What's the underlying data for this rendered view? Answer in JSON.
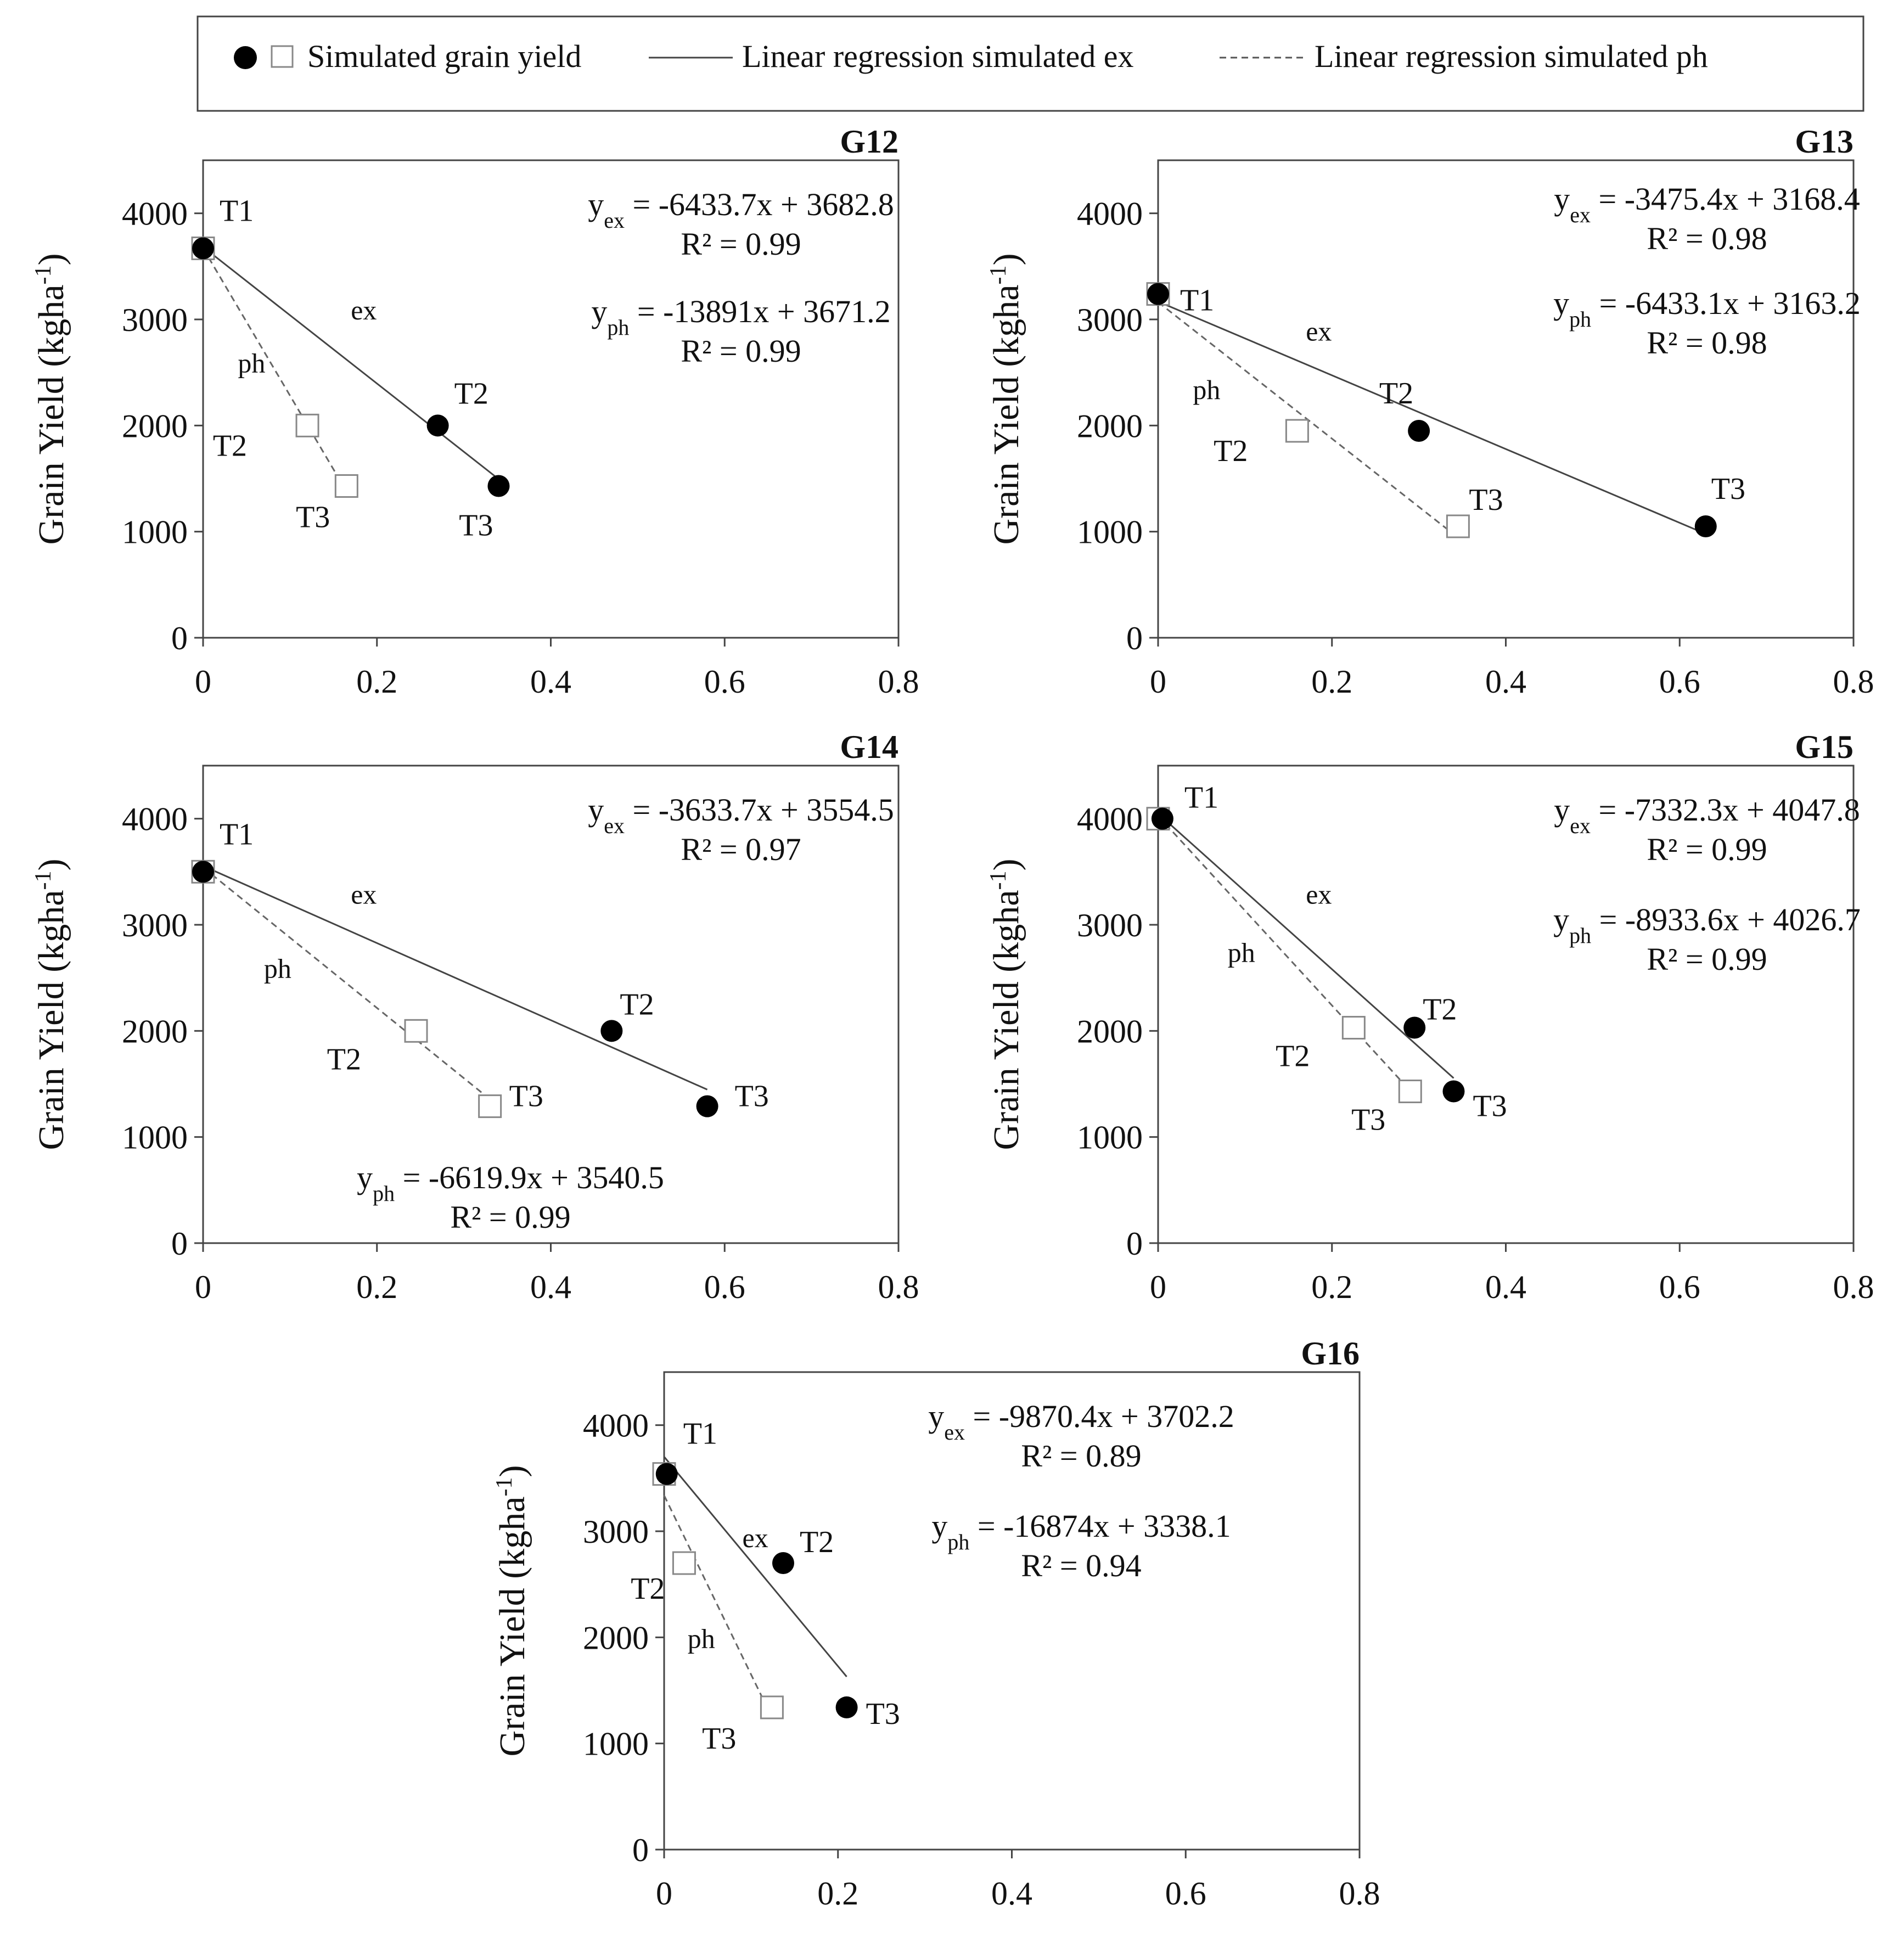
{
  "legend": {
    "marker_label": "Simulated grain yield",
    "ex_line_label": "Linear regression simulated ex",
    "ph_line_label": "Linear regression simulated ph"
  },
  "chart_data": [
    {
      "type": "scatter",
      "title": "G12",
      "ylabel": "Grain Yield (kgha-1)",
      "xlim": [
        0,
        0.8
      ],
      "ylim": [
        0,
        4000
      ],
      "xticks": [
        0,
        0.2,
        0.4,
        0.6,
        0.8
      ],
      "yticks": [
        0,
        1000,
        2000,
        3000,
        4000
      ],
      "series": [
        {
          "points": [
            {
              "x": 0.0,
              "y": 3670,
              "label": "T1"
            },
            {
              "x": 0.27,
              "y": 2000,
              "label": "T2"
            },
            {
              "x": 0.34,
              "y": 1430,
              "label": "T3"
            }
          ]
        },
        {
          "points": [
            {
              "x": 0.0,
              "y": 3670,
              "label": ""
            },
            {
              "x": 0.12,
              "y": 2000,
              "label": "T2"
            },
            {
              "x": 0.165,
              "y": 1430,
              "label": "T3"
            }
          ]
        }
      ],
      "line_labels": {
        "ex": "ex",
        "ph": "ph"
      },
      "equations": {
        "ex": {
          "base": "y",
          "sub": "ex",
          "rhs": " = -6433.7x + 3682.8",
          "r2": "R² = 0.99"
        },
        "ph": {
          "base": "y",
          "sub": "ph",
          "rhs": " = -13891x + 3671.2",
          "r2": "R² = 0.99"
        }
      }
    },
    {
      "type": "scatter",
      "title": "G13",
      "ylabel": "Grain Yield (kgha-1)",
      "xlim": [
        0,
        0.8
      ],
      "ylim": [
        0,
        4000
      ],
      "xticks": [
        0,
        0.2,
        0.4,
        0.6,
        0.8
      ],
      "yticks": [
        0,
        1000,
        2000,
        3000,
        4000
      ],
      "series": [
        {
          "points": [
            {
              "x": 0.0,
              "y": 3240,
              "label": "T1"
            },
            {
              "x": 0.3,
              "y": 1950,
              "label": "T2"
            },
            {
              "x": 0.63,
              "y": 1050,
              "label": "T3"
            }
          ]
        },
        {
          "points": [
            {
              "x": 0.0,
              "y": 3240,
              "label": ""
            },
            {
              "x": 0.16,
              "y": 1950,
              "label": "T2"
            },
            {
              "x": 0.345,
              "y": 1050,
              "label": "T3"
            }
          ]
        }
      ],
      "line_labels": {
        "ex": "ex",
        "ph": "ph"
      },
      "equations": {
        "ex": {
          "base": "y",
          "sub": "ex",
          "rhs": " = -3475.4x + 3168.4",
          "r2": "R² = 0.98"
        },
        "ph": {
          "base": "y",
          "sub": "ph",
          "rhs": " = -6433.1x + 3163.2",
          "r2": "R² = 0.98"
        }
      }
    },
    {
      "type": "scatter",
      "title": "G14",
      "ylabel": "Grain Yield (kgha-1)",
      "xlim": [
        0,
        0.8
      ],
      "ylim": [
        0,
        4000
      ],
      "xticks": [
        0,
        0.2,
        0.4,
        0.6,
        0.8
      ],
      "yticks": [
        0,
        1000,
        2000,
        3000,
        4000
      ],
      "series": [
        {
          "points": [
            {
              "x": 0.0,
              "y": 3500,
              "label": "T1"
            },
            {
              "x": 0.47,
              "y": 2000,
              "label": "T2"
            },
            {
              "x": 0.58,
              "y": 1290,
              "label": "T3"
            }
          ]
        },
        {
          "points": [
            {
              "x": 0.0,
              "y": 3500,
              "label": ""
            },
            {
              "x": 0.245,
              "y": 2000,
              "label": "T2"
            },
            {
              "x": 0.33,
              "y": 1290,
              "label": "T3"
            }
          ]
        }
      ],
      "line_labels": {
        "ex": "ex",
        "ph": "ph"
      },
      "equations": {
        "ex": {
          "base": "y",
          "sub": "ex",
          "rhs": " = -3633.7x + 3554.5",
          "r2": "R² = 0.97"
        },
        "ph": {
          "base": "y",
          "sub": "ph",
          "rhs": " = -6619.9x + 3540.5",
          "r2": "R² = 0.99"
        }
      }
    },
    {
      "type": "scatter",
      "title": "G15",
      "ylabel": "Grain Yield (kgha-1)",
      "xlim": [
        0,
        0.8
      ],
      "ylim": [
        0,
        4000
      ],
      "xticks": [
        0,
        0.2,
        0.4,
        0.6,
        0.8
      ],
      "yticks": [
        0,
        1000,
        2000,
        3000,
        4000
      ],
      "series": [
        {
          "points": [
            {
              "x": 0.005,
              "y": 4000,
              "label": "T1"
            },
            {
              "x": 0.295,
              "y": 2030,
              "label": "T2"
            },
            {
              "x": 0.34,
              "y": 1430,
              "label": "T3"
            }
          ]
        },
        {
          "points": [
            {
              "x": 0.0,
              "y": 4000,
              "label": ""
            },
            {
              "x": 0.225,
              "y": 2030,
              "label": "T2"
            },
            {
              "x": 0.29,
              "y": 1430,
              "label": "T3"
            }
          ]
        }
      ],
      "line_labels": {
        "ex": "ex",
        "ph": "ph"
      },
      "equations": {
        "ex": {
          "base": "y",
          "sub": "ex",
          "rhs": " = -7332.3x + 4047.8",
          "r2": "R² = 0.99"
        },
        "ph": {
          "base": "y",
          "sub": "ph",
          "rhs": " = -8933.6x + 4026.7",
          "r2": "R² = 0.99"
        }
      }
    },
    {
      "type": "scatter",
      "title": "G16",
      "ylabel": "Grain Yield (kgha-1)",
      "xlim": [
        0,
        0.8
      ],
      "ylim": [
        0,
        4000
      ],
      "xticks": [
        0,
        0.2,
        0.4,
        0.6,
        0.8
      ],
      "yticks": [
        0,
        1000,
        2000,
        3000,
        4000
      ],
      "series": [
        {
          "points": [
            {
              "x": 0.003,
              "y": 3540,
              "label": "T1"
            },
            {
              "x": 0.137,
              "y": 2700,
              "label": "T2"
            },
            {
              "x": 0.21,
              "y": 1340,
              "label": "T3"
            }
          ]
        },
        {
          "points": [
            {
              "x": 0.0,
              "y": 3540,
              "label": ""
            },
            {
              "x": 0.023,
              "y": 2700,
              "label": "T2"
            },
            {
              "x": 0.124,
              "y": 1340,
              "label": "T3"
            }
          ]
        }
      ],
      "line_labels": {
        "ex": "ex",
        "ph": "ph"
      },
      "equations": {
        "ex": {
          "base": "y",
          "sub": "ex",
          "rhs": " = -9870.4x + 3702.2",
          "r2": "R² = 0.89"
        },
        "ph": {
          "base": "y",
          "sub": "ph",
          "rhs": " = -16874x + 3338.1",
          "r2": "R² = 0.94"
        }
      }
    }
  ]
}
